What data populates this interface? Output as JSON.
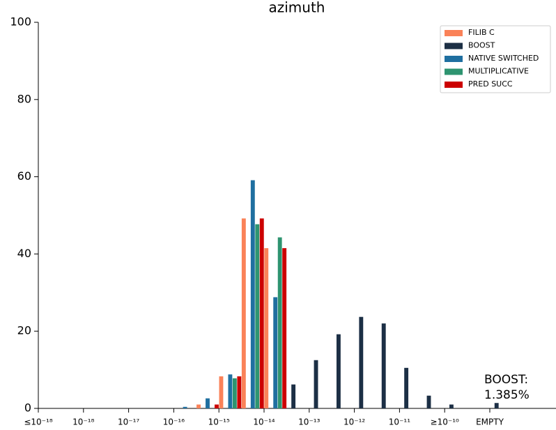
{
  "chart_data": {
    "type": "bar",
    "title": "azimuth",
    "categories": [
      "≤10⁻¹⁸",
      null,
      "10⁻¹⁸",
      null,
      "10⁻¹⁷",
      null,
      "10⁻¹⁶",
      null,
      "10⁻¹⁵",
      null,
      "10⁻¹⁴",
      null,
      "10⁻¹³",
      null,
      "10⁻¹²",
      null,
      "10⁻¹¹",
      null,
      "≥10⁻¹⁰",
      null,
      "EMPTY"
    ],
    "series": [
      {
        "name": "FILIB C",
        "color": "#fa8258",
        "values": [
          0,
          0,
          0,
          0,
          0,
          0,
          0,
          1.0,
          8.3,
          49.2,
          41.5,
          0,
          0,
          0,
          0,
          0,
          0,
          0,
          0,
          0,
          0
        ]
      },
      {
        "name": "BOOST",
        "color": "#1c2f45",
        "values": [
          0,
          0,
          0,
          0,
          0,
          0,
          0,
          0,
          0,
          0,
          0,
          6.2,
          12.5,
          19.2,
          23.7,
          22.0,
          10.5,
          3.3,
          1.0,
          0,
          1.4
        ]
      },
      {
        "name": "NATIVE SWITCHED",
        "color": "#1f6fa0",
        "values": [
          0,
          0,
          0,
          0,
          0,
          0,
          0.4,
          2.6,
          8.8,
          59.1,
          28.8,
          0,
          0,
          0,
          0,
          0,
          0,
          0,
          0,
          0,
          0
        ]
      },
      {
        "name": "MULTIPLICATIVE",
        "color": "#2e9470",
        "values": [
          0,
          0,
          0,
          0,
          0,
          0,
          0,
          0,
          7.8,
          47.7,
          44.3,
          0,
          0,
          0,
          0,
          0,
          0,
          0,
          0,
          0,
          0
        ]
      },
      {
        "name": "PRED SUCC",
        "color": "#cc0000",
        "values": [
          0,
          0,
          0,
          0,
          0,
          0,
          0,
          1.0,
          8.3,
          49.2,
          41.5,
          0,
          0,
          0,
          0,
          0,
          0,
          0,
          0,
          0,
          0
        ]
      }
    ],
    "ylim": [
      0,
      100
    ],
    "yticks": [
      0,
      20,
      40,
      60,
      80,
      100
    ],
    "legend": "upper right",
    "annotation": [
      "BOOST:",
      "1.385%"
    ]
  }
}
